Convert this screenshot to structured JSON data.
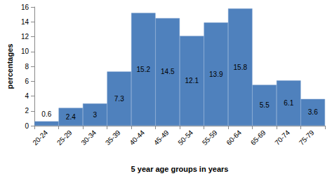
{
  "chart_data": {
    "type": "bar",
    "categories": [
      "20-24",
      "25-29",
      "30-34",
      "35-39",
      "40-44",
      "45-49",
      "50-54",
      "55-59",
      "60-64",
      "65-69",
      "70-74",
      "75-79"
    ],
    "values": [
      0.6,
      2.4,
      3,
      7.3,
      15.2,
      14.5,
      12.1,
      13.9,
      15.8,
      5.5,
      6.1,
      3.6
    ],
    "color": "#4f81bd",
    "x_label": "5 year age groups in years",
    "y_label": "percentages",
    "ylim": [
      0,
      16
    ],
    "yticks": [
      0,
      2,
      4,
      6,
      8,
      10,
      12,
      14,
      16
    ],
    "grid": false,
    "data_labels": true
  }
}
